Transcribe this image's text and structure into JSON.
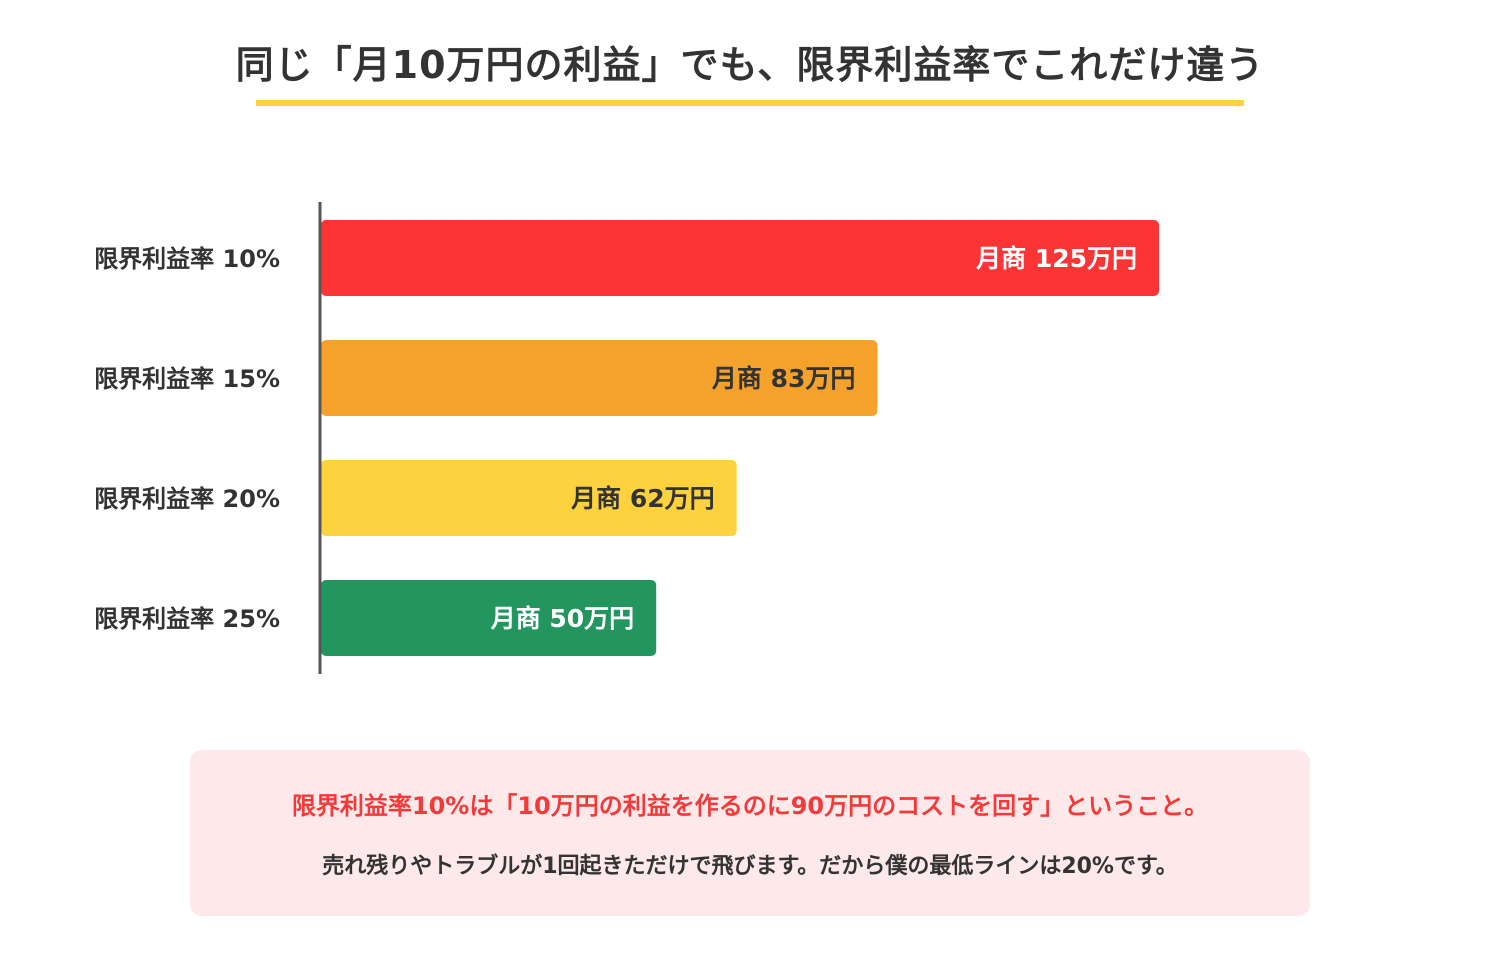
{
  "colors": {
    "title_underline": "#FDD23E",
    "note_background": "#FDE9EA",
    "note_highlight": "#F23A3A",
    "text_dark": "#333333",
    "axis": "#555555"
  },
  "note": {
    "main": "限界利益率10%は「10万円の利益を作るのに90万円のコストを回す」ということ。",
    "sub": "売れ残りやトラブルが1回起きただけで飛びます。だから僕の最低ラインは20%です。"
  },
  "chart_data": {
    "type": "bar",
    "orientation": "horizontal",
    "title": "同じ「月10万円の利益」でも、限界利益率でこれだけ違う",
    "xlabel": "",
    "ylabel": "",
    "grid": false,
    "xlim": [
      0,
      150
    ],
    "categories": [
      "限界利益率 10%",
      "限界利益率 15%",
      "限界利益率 20%",
      "限界利益率 25%"
    ],
    "values": [
      125,
      83,
      62,
      50
    ],
    "data_labels": [
      "月商 125万円",
      "月商 83万円",
      "月商 62万円",
      "月商 50万円"
    ],
    "bar_colors": [
      "#FB3535",
      "#F4A22B",
      "#FDD23E",
      "#239660"
    ],
    "label_colors": [
      "#FFFFFF",
      "#333333",
      "#333333",
      "#FFFFFF"
    ]
  }
}
